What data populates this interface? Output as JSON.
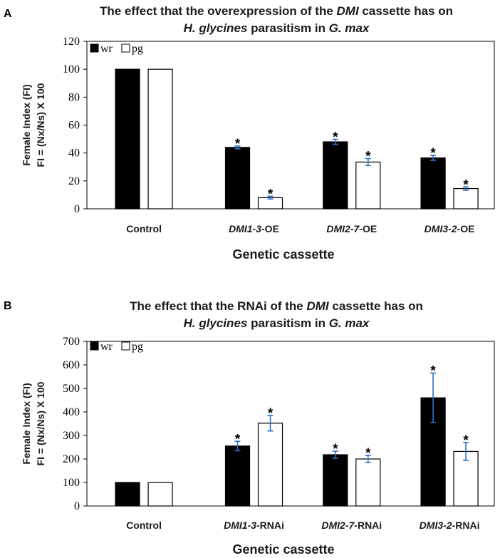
{
  "panels": [
    {
      "letter": "A",
      "title_parts": [
        [
          {
            "t": "The effect that the overexpression of the ",
            "i": false
          },
          {
            "t": "DMI",
            "i": true
          },
          {
            "t": " cassette has on",
            "i": false
          }
        ],
        [
          {
            "t": "H. glycines",
            "i": true
          },
          {
            "t": " parasitism in ",
            "i": false
          },
          {
            "t": "G. max",
            "i": true
          }
        ]
      ],
      "ylabel_lines": [
        "Female Index (FI)",
        "FI = (Nx/Ns) X 100"
      ],
      "xlabel": "Genetic cassette",
      "category_parts": [
        [
          {
            "t": "Control",
            "i": false
          }
        ],
        [
          {
            "t": "DMI1-3",
            "i": true
          },
          {
            "t": "-OE",
            "i": false
          }
        ],
        [
          {
            "t": "DMI2-7",
            "i": true
          },
          {
            "t": "-OE",
            "i": false
          }
        ],
        [
          {
            "t": "DMI3-2",
            "i": true
          },
          {
            "t": "-OE",
            "i": false
          }
        ]
      ]
    },
    {
      "letter": "B",
      "title_parts": [
        [
          {
            "t": "The effect that the RNAi of the ",
            "i": false
          },
          {
            "t": "DMI",
            "i": true
          },
          {
            "t": " cassette has on",
            "i": false
          }
        ],
        [
          {
            "t": "H. glycines",
            "i": true
          },
          {
            "t": " parasitism in ",
            "i": false
          },
          {
            "t": "G. max",
            "i": true
          }
        ]
      ],
      "ylabel_lines": [
        "Female Index (FI)",
        "FI = (Nx/Ns) X 100"
      ],
      "xlabel": "Genetic cassette",
      "category_parts": [
        [
          {
            "t": "Control",
            "i": false
          }
        ],
        [
          {
            "t": "DMI1-3",
            "i": true
          },
          {
            "t": "-RNAi",
            "i": false
          }
        ],
        [
          {
            "t": "DMI2-7",
            "i": true
          },
          {
            "t": "-RNAi",
            "i": false
          }
        ],
        [
          {
            "t": "DMI3-2",
            "i": true
          },
          {
            "t": "-RNAi",
            "i": false
          }
        ]
      ]
    }
  ],
  "chart_data": [
    {
      "type": "bar",
      "title": "The effect that the overexpression of the DMI cassette has on H. glycines parasitism in G. max",
      "xlabel": "Genetic cassette",
      "ylabel": "Female Index (FI) FI = (Nx/Ns) X 100",
      "categories": [
        "Control",
        "DMI1-3-OE",
        "DMI2-7-OE",
        "DMI3-2-OE"
      ],
      "yticks": [
        "0",
        "20",
        "40",
        "60",
        "80",
        "100",
        "120"
      ],
      "ylim": [
        0,
        120
      ],
      "legend_position": "top-left",
      "series": [
        {
          "name": "wr",
          "color": "#000000",
          "values": [
            100,
            44,
            48,
            36.5
          ],
          "errors": [
            0,
            1,
            1.8,
            1.8
          ],
          "significant": [
            false,
            true,
            true,
            true
          ]
        },
        {
          "name": "pg",
          "color": "#ffffff",
          "values": [
            100,
            8,
            33.5,
            14.5
          ],
          "errors": [
            0,
            1,
            2.5,
            1.2
          ],
          "significant": [
            false,
            true,
            true,
            true
          ]
        }
      ],
      "significance_marker": "*"
    },
    {
      "type": "bar",
      "title": "The effect that the RNAi of the DMI cassette has on H. glycines parasitism in G. max",
      "xlabel": "Genetic cassette",
      "ylabel": "Female Index (FI) FI = (Nx/Ns) X 100",
      "categories": [
        "Control",
        "DMI1-3-RNAi",
        "DMI2-7-RNAi",
        "DMI3-2-RNAi"
      ],
      "yticks": [
        "0",
        "100",
        "200",
        "300",
        "400",
        "500",
        "600",
        "700"
      ],
      "ylim": [
        0,
        700
      ],
      "legend_position": "top-left",
      "series": [
        {
          "name": "wr",
          "color": "#000000",
          "values": [
            100,
            255,
            218,
            460
          ],
          "errors": [
            0,
            20,
            15,
            105
          ],
          "significant": [
            false,
            true,
            true,
            true
          ]
        },
        {
          "name": "pg",
          "color": "#ffffff",
          "values": [
            100,
            352,
            200,
            232
          ],
          "errors": [
            0,
            33,
            15,
            38
          ],
          "significant": [
            false,
            true,
            true,
            true
          ]
        }
      ],
      "significance_marker": "*"
    }
  ]
}
